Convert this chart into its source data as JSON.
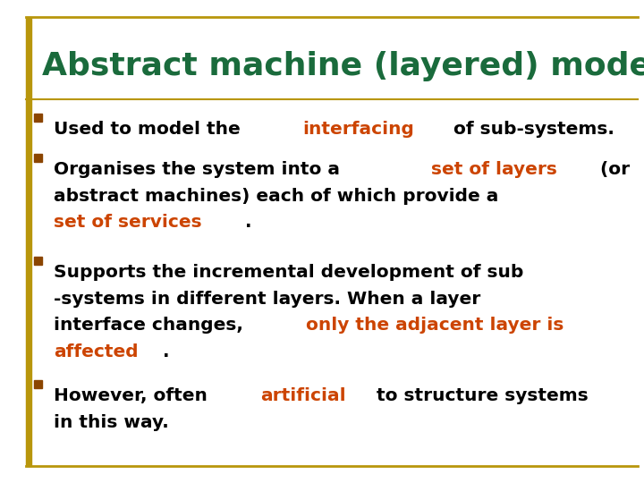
{
  "title": "Abstract machine (layered) model",
  "title_color": "#1a6b3c",
  "background_color": "#ffffff",
  "border_color": "#b8960c",
  "bullet_square_color": "#8b4500",
  "text_color": "#000000",
  "highlight_color": "#cc4400",
  "title_fontsize": 26,
  "body_fontsize": 14.5,
  "bullet_points": [
    [
      {
        "text": "Used to model the ",
        "color": "#000000"
      },
      {
        "text": "interfacing",
        "color": "#cc4400"
      },
      {
        "text": " of sub-systems.",
        "color": "#000000"
      }
    ],
    [
      {
        "text": "Organises the system into a ",
        "color": "#000000"
      },
      {
        "text": "set of layers",
        "color": "#cc4400"
      },
      {
        "text": " (or\nabstract machines) each of which provide a\n",
        "color": "#000000"
      },
      {
        "text": "set of services",
        "color": "#cc4400"
      },
      {
        "text": ".",
        "color": "#000000"
      }
    ],
    [
      {
        "text": "Supports the incremental development of sub\n-systems in different layers. When a layer\ninterface changes, ",
        "color": "#000000"
      },
      {
        "text": "only the adjacent layer is\naffected",
        "color": "#cc4400"
      },
      {
        "text": ".",
        "color": "#000000"
      }
    ],
    [
      {
        "text": "However, often ",
        "color": "#000000"
      },
      {
        "text": "artificial",
        "color": "#cc4400"
      },
      {
        "text": " to structure systems\nin this way.",
        "color": "#000000"
      }
    ]
  ]
}
